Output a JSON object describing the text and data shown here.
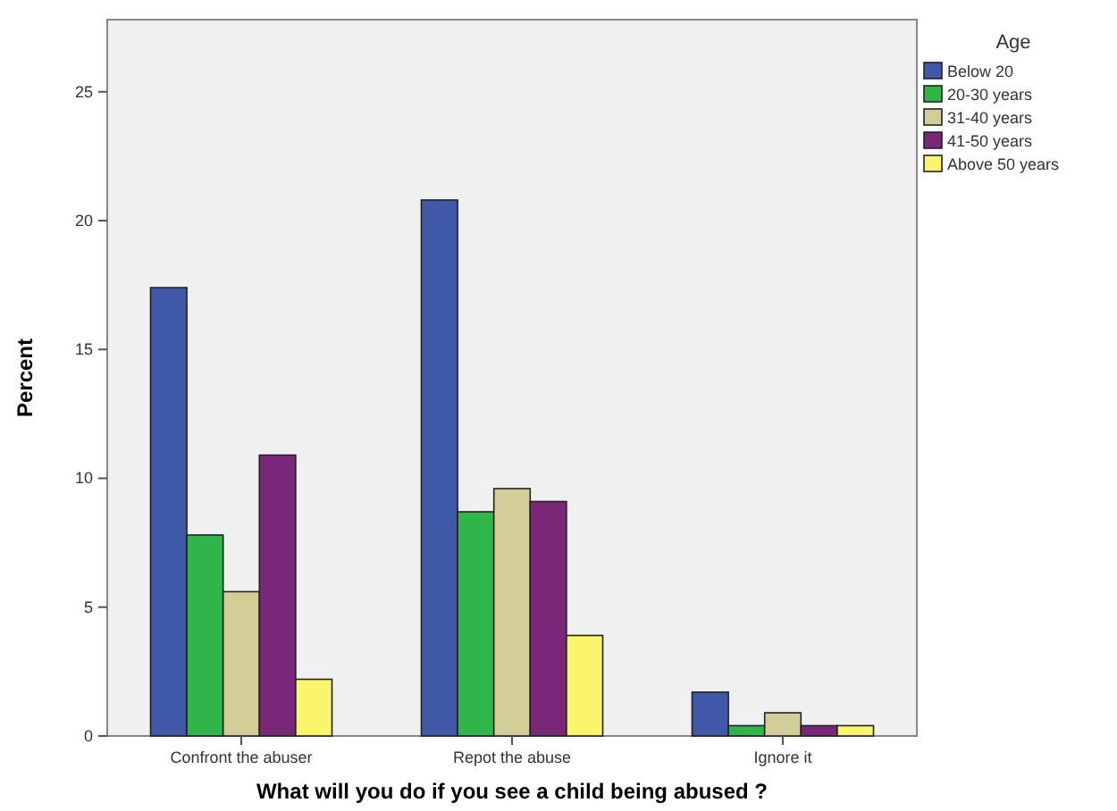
{
  "chart_data": {
    "type": "bar",
    "xlabel": "What will you do if you see a child being abused ?",
    "ylabel": "Percent",
    "legend_title": "Age",
    "legend": "right",
    "categories": [
      "Confront the abuser",
      "Repot the abuse",
      "Ignore it"
    ],
    "ylim": [
      0,
      27.8
    ],
    "yticks": [
      0,
      5,
      10,
      15,
      20,
      25
    ],
    "grid": false,
    "series": [
      {
        "name": "Below 20",
        "color": "#3f58a8",
        "values": [
          17.4,
          20.8,
          1.7
        ]
      },
      {
        "name": "20-30 years",
        "color": "#30b548",
        "values": [
          7.8,
          8.7,
          0.4
        ]
      },
      {
        "name": "31-40 years",
        "color": "#d3cd98",
        "values": [
          5.6,
          9.6,
          0.9
        ]
      },
      {
        "name": "41-50 years",
        "color": "#7b2779",
        "values": [
          10.9,
          9.1,
          0.4
        ]
      },
      {
        "name": "Above 50 years",
        "color": "#fbf56d",
        "values": [
          2.2,
          3.9,
          0.4
        ]
      }
    ]
  }
}
